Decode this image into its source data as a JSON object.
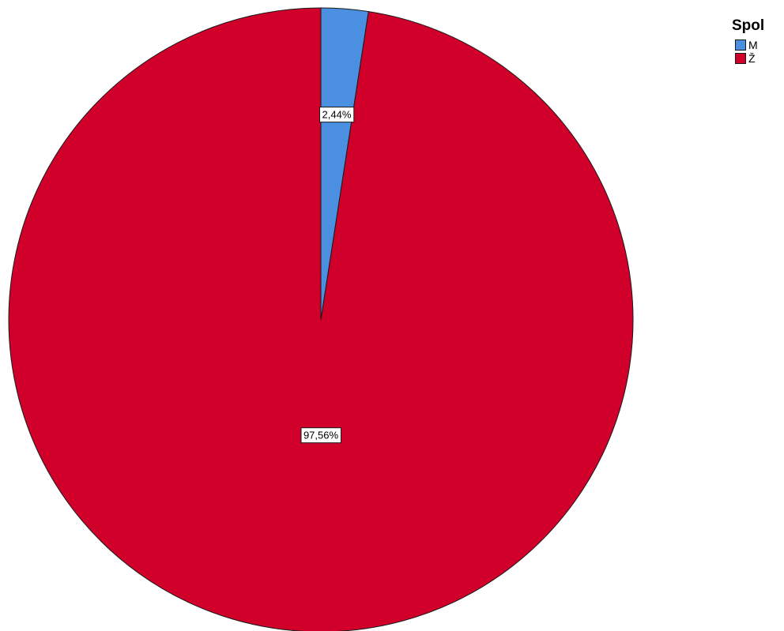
{
  "chart_data": {
    "type": "pie",
    "title": "",
    "legend_title": "Spol",
    "legend_position": "top-right",
    "slices": [
      {
        "name": "M",
        "value": 2.44,
        "label": "2,44%",
        "color": "#4a8fe0"
      },
      {
        "name": "Ž",
        "value": 97.56,
        "label": "97,56%",
        "color": "#d0002a"
      }
    ],
    "start_angle": "top",
    "direction": "clockwise"
  }
}
